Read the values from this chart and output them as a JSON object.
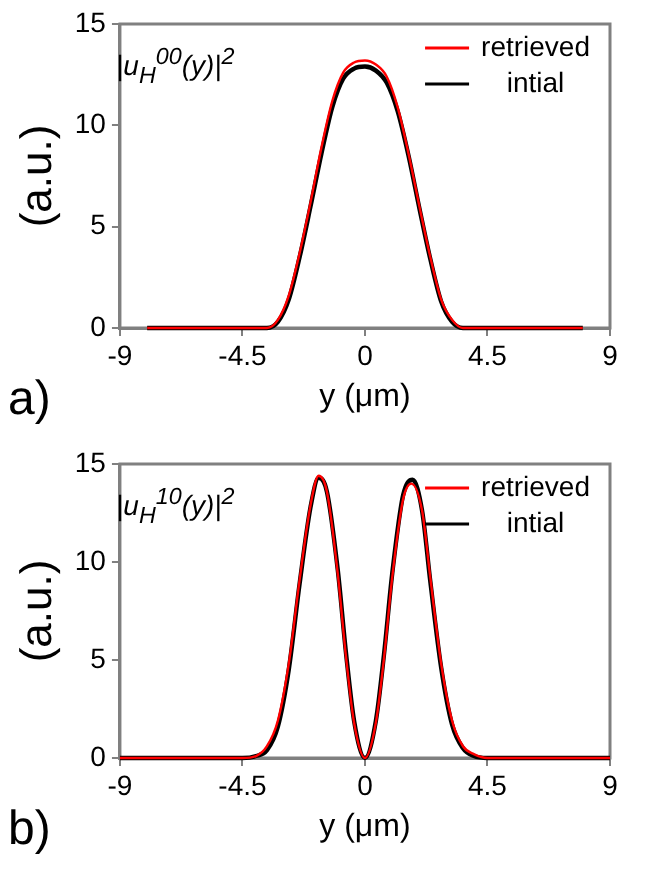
{
  "chart_data": [
    {
      "type": "line",
      "xlabel": "y (μm)",
      "ylabel": "(a.u.)",
      "annotations": [
        "|u$_{H}$$^{00}$(y)|$^{2}$",
        "a)"
      ],
      "xlim": [
        -9,
        9
      ],
      "xticks": [
        -9,
        -4.5,
        0,
        4.5,
        9
      ],
      "ylim": [
        0,
        15
      ],
      "yticks": [
        0,
        5,
        10,
        15
      ],
      "grid": false,
      "legend": "top right",
      "marker": "none",
      "line_style": "solid",
      "series": [
        {
          "name": "retrieved",
          "color": "#ff0000",
          "x": [
            -8,
            -3.6,
            -3.2,
            -2.8,
            -2.4,
            -2.0,
            -1.6,
            -1.2,
            -0.8,
            -0.4,
            0,
            0.4,
            0.8,
            1.2,
            1.6,
            2.0,
            2.4,
            2.8,
            3.2,
            3.6,
            8
          ],
          "values": [
            0,
            0,
            0.4,
            1.6,
            3.7,
            6.2,
            8.9,
            11.2,
            12.6,
            13.1,
            13.2,
            13.0,
            12.4,
            10.9,
            8.6,
            6.0,
            3.5,
            1.4,
            0.4,
            0,
            0
          ]
        },
        {
          "name": "intial",
          "color": "#000000",
          "x": [
            -8,
            -3.6,
            -3.2,
            -2.8,
            -2.4,
            -2.0,
            -1.6,
            -1.2,
            -0.8,
            -0.4,
            0,
            0.4,
            0.8,
            1.2,
            1.6,
            2.0,
            2.4,
            2.8,
            3.2,
            3.6,
            8
          ],
          "values": [
            0,
            0,
            0.3,
            1.4,
            3.5,
            6.0,
            8.6,
            10.9,
            12.3,
            12.8,
            12.9,
            12.7,
            12.1,
            10.7,
            8.5,
            5.9,
            3.4,
            1.3,
            0.3,
            0,
            0
          ]
        }
      ]
    },
    {
      "type": "line",
      "xlabel": "y (μm)",
      "ylabel": "(a.u.)",
      "annotations": [
        "|u$_{H}$$^{10}$(y)|$^{2}$",
        "b)"
      ],
      "xlim": [
        -9,
        9
      ],
      "xticks": [
        -9,
        -4.5,
        0,
        4.5,
        9
      ],
      "ylim": [
        0,
        15
      ],
      "yticks": [
        0,
        5,
        10,
        15
      ],
      "grid": false,
      "legend": "top right",
      "marker": "none",
      "line_style": "solid",
      "series": [
        {
          "name": "retrieved",
          "color": "#ff0000",
          "x": [
            -9,
            -4.5,
            -4.0,
            -3.6,
            -3.2,
            -2.8,
            -2.4,
            -2.0,
            -1.7,
            -1.4,
            -1.0,
            -0.7,
            -0.4,
            0,
            0.4,
            0.7,
            1.0,
            1.4,
            1.7,
            2.1,
            2.4,
            2.8,
            3.2,
            3.6,
            4.0,
            4.5,
            9
          ],
          "values": [
            0,
            0,
            0.1,
            0.6,
            1.9,
            4.8,
            9.1,
            12.9,
            14.4,
            13.6,
            9.4,
            5.2,
            1.8,
            0,
            1.8,
            5.1,
            9.2,
            13.2,
            14.0,
            12.6,
            9.2,
            4.8,
            1.9,
            0.6,
            0.2,
            0,
            0
          ]
        },
        {
          "name": "intial",
          "color": "#000000",
          "x": [
            -9,
            -4.5,
            -4.0,
            -3.6,
            -3.2,
            -2.8,
            -2.4,
            -2.0,
            -1.7,
            -1.4,
            -1.0,
            -0.7,
            -0.4,
            0,
            0.4,
            0.7,
            1.0,
            1.4,
            1.75,
            2.1,
            2.4,
            2.8,
            3.2,
            3.6,
            4.0,
            4.5,
            9
          ],
          "values": [
            0,
            0,
            0.1,
            0.4,
            1.6,
            4.5,
            8.9,
            12.8,
            14.3,
            13.6,
            9.6,
            5.4,
            1.9,
            0,
            1.9,
            5.3,
            9.4,
            13.4,
            14.2,
            12.6,
            9.0,
            4.6,
            1.7,
            0.5,
            0.1,
            0,
            0
          ]
        }
      ]
    }
  ]
}
